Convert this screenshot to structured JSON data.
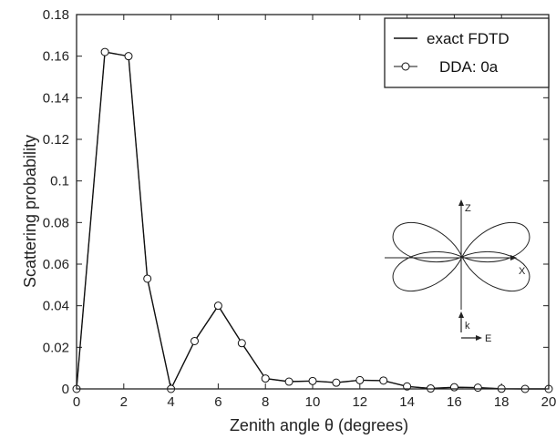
{
  "chart_data": {
    "type": "line",
    "xlabel": "Zenith angle θ (degrees)",
    "ylabel": "Scattering probability",
    "xlim": [
      0,
      20
    ],
    "ylim": [
      0,
      0.18
    ],
    "xticks": [
      0,
      2,
      4,
      6,
      8,
      10,
      12,
      14,
      16,
      18,
      20
    ],
    "yticks": [
      0,
      0.02,
      0.04,
      0.06,
      0.08,
      0.1,
      0.12,
      0.14,
      0.16,
      0.18
    ],
    "ytick_labels": [
      "0",
      "0.02",
      "0.04",
      "0.06",
      "0.08",
      "0.1",
      "0.12",
      "0.14",
      "0.16",
      "0.18"
    ],
    "grid": false,
    "legend_position": "top-right",
    "series": [
      {
        "name": "exact FDTD",
        "style": "solid-line",
        "x": [
          0,
          1.2,
          2.2,
          3,
          4,
          5,
          6,
          7,
          8,
          9,
          10,
          11,
          12,
          13,
          14,
          15,
          16,
          17,
          18,
          19,
          20
        ],
        "y": [
          0,
          0.162,
          0.16,
          0.053,
          0,
          0.023,
          0.04,
          0.022,
          0.005,
          0.0035,
          0.0038,
          0.003,
          0.0042,
          0.004,
          0.0012,
          0.0002,
          0.0008,
          0.0006,
          0.0001,
          0.0,
          0
        ]
      },
      {
        "name": "DDA: 0a",
        "style": "line-with-circles",
        "x": [
          0,
          1.2,
          2.2,
          3,
          4,
          5,
          6,
          7,
          8,
          9,
          10,
          11,
          12,
          13,
          14,
          15,
          16,
          17,
          18,
          19,
          20
        ],
        "y": [
          0,
          0.162,
          0.16,
          0.053,
          0,
          0.023,
          0.04,
          0.022,
          0.005,
          0.0035,
          0.0038,
          0.003,
          0.0042,
          0.004,
          0.0012,
          0.0002,
          0.0008,
          0.0006,
          0.0001,
          0.0,
          0
        ]
      }
    ],
    "inset": {
      "axis_z": "Z",
      "axis_x": "X",
      "vector_k": "k",
      "vector_e": "E"
    }
  }
}
